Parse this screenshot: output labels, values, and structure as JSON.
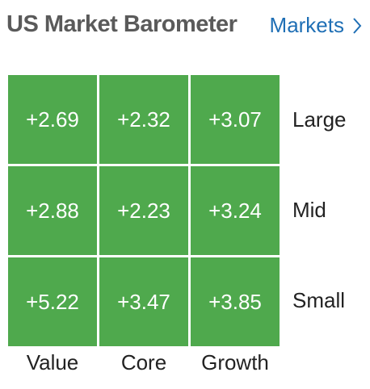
{
  "header": {
    "title": "US Market Barometer",
    "link_label": "Markets"
  },
  "colors": {
    "positive_cell": "#4fa94d",
    "link": "#1f6fb5",
    "title": "#5a5a5a"
  },
  "icons": {
    "link_arrow": "chevron-right-icon"
  },
  "barometer": {
    "row_labels": [
      "Large",
      "Mid",
      "Small"
    ],
    "col_labels": [
      "Value",
      "Core",
      "Growth"
    ],
    "rows": [
      [
        "+2.69",
        "+2.32",
        "+3.07"
      ],
      [
        "+2.88",
        "+2.23",
        "+3.24"
      ],
      [
        "+5.22",
        "+3.47",
        "+3.85"
      ]
    ]
  }
}
